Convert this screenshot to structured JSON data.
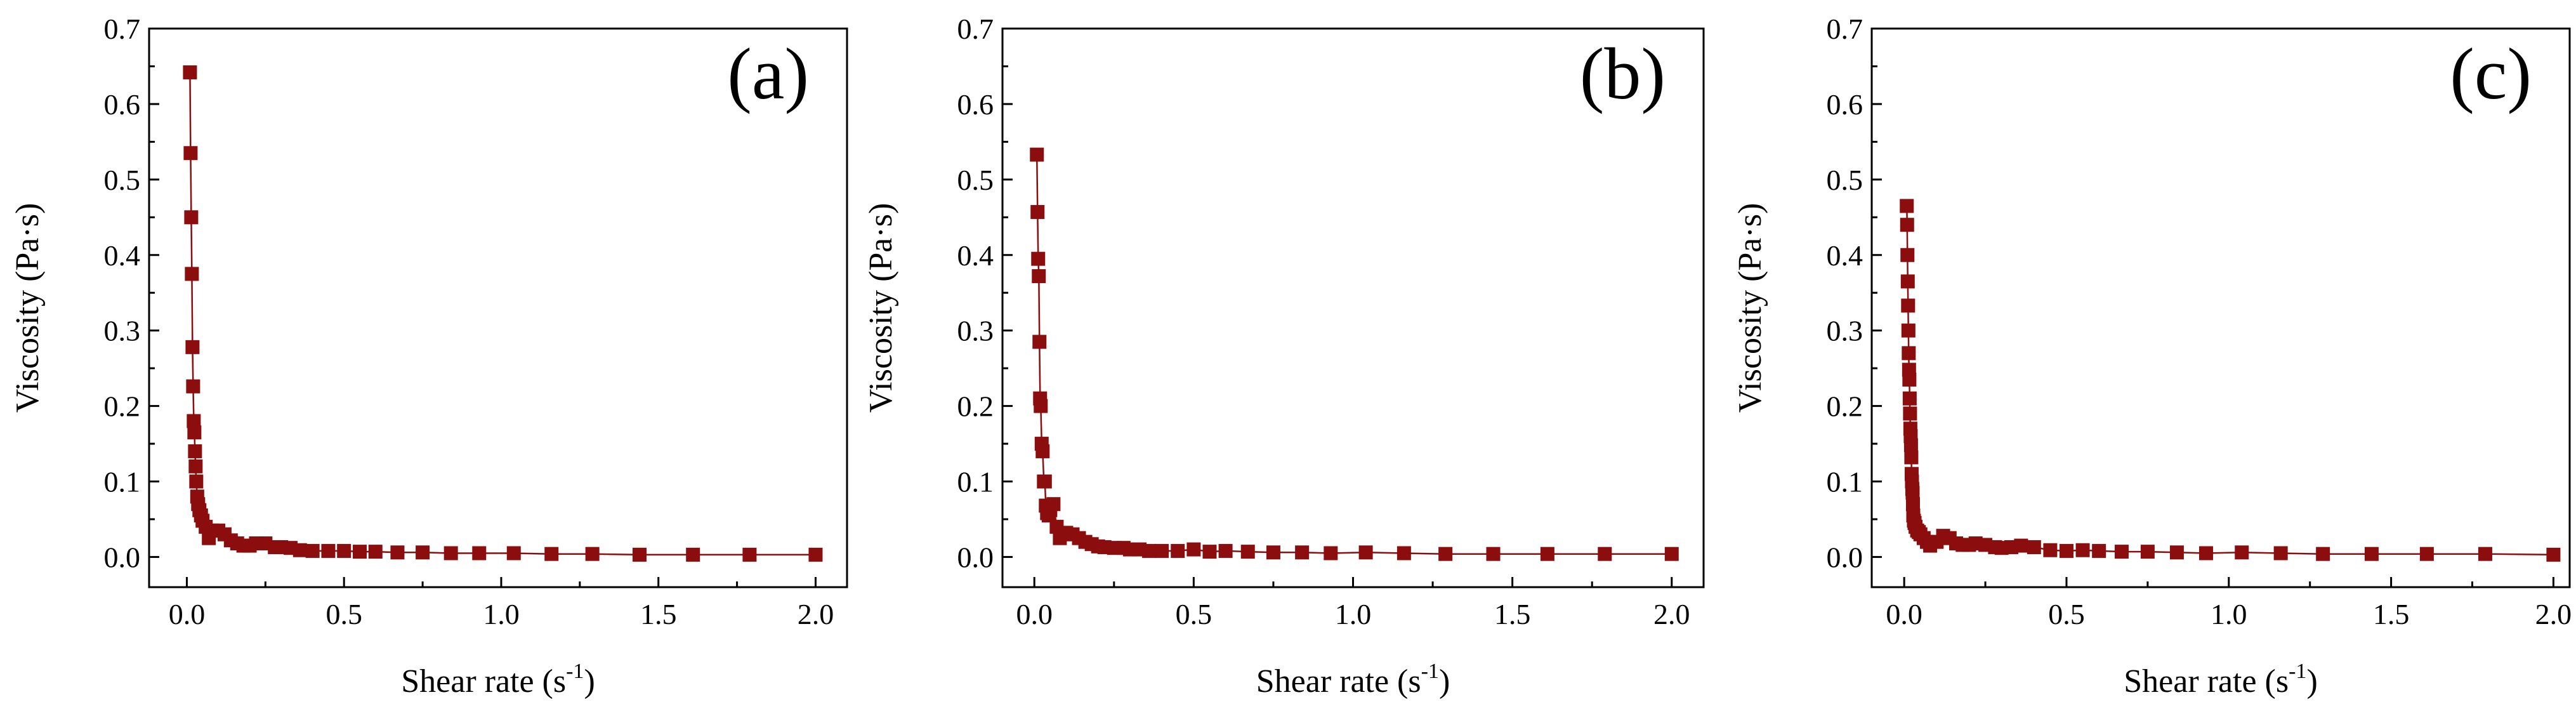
{
  "chart_data": [
    {
      "type": "scatter",
      "panel_label": "(a)",
      "xlabel": "Shear rate (s",
      "xlabel_superscript": "-1",
      "xlabel_suffix": ")",
      "ylabel": "Viscosity (Pa·s)",
      "xlim": [
        -0.12,
        2.1
      ],
      "ylim": [
        -0.04,
        0.7
      ],
      "xticks": [
        0.0,
        0.5,
        1.0,
        1.5,
        2.0
      ],
      "xtick_labels": [
        "0.0",
        "0.5",
        "1.0",
        "1.5",
        "2.0"
      ],
      "yticks": [
        0.0,
        0.1,
        0.2,
        0.3,
        0.4,
        0.5,
        0.6,
        0.7
      ],
      "ytick_labels": [
        "0.0",
        "0.1",
        "0.2",
        "0.3",
        "0.4",
        "0.5",
        "0.6",
        "0.7"
      ],
      "series": [
        {
          "name": "viscosity",
          "color": "#8b0d0d",
          "x": [
            0.01,
            0.012,
            0.014,
            0.016,
            0.018,
            0.02,
            0.022,
            0.024,
            0.026,
            0.028,
            0.03,
            0.033,
            0.036,
            0.04,
            0.045,
            0.05,
            0.06,
            0.07,
            0.08,
            0.1,
            0.12,
            0.14,
            0.16,
            0.18,
            0.2,
            0.22,
            0.25,
            0.28,
            0.3,
            0.33,
            0.36,
            0.4,
            0.45,
            0.5,
            0.55,
            0.6,
            0.67,
            0.75,
            0.84,
            0.93,
            1.04,
            1.16,
            1.29,
            1.44,
            1.61,
            1.79,
            2.0
          ],
          "y": [
            0.642,
            0.535,
            0.45,
            0.375,
            0.278,
            0.226,
            0.18,
            0.165,
            0.14,
            0.12,
            0.1,
            0.08,
            0.07,
            0.062,
            0.055,
            0.048,
            0.04,
            0.025,
            0.035,
            0.035,
            0.03,
            0.022,
            0.018,
            0.015,
            0.015,
            0.018,
            0.018,
            0.013,
            0.013,
            0.012,
            0.009,
            0.008,
            0.008,
            0.008,
            0.007,
            0.007,
            0.006,
            0.006,
            0.005,
            0.005,
            0.005,
            0.004,
            0.004,
            0.003,
            0.003,
            0.003,
            0.003
          ]
        }
      ]
    },
    {
      "type": "scatter",
      "panel_label": "(b)",
      "xlabel": "Shear rate (s",
      "xlabel_superscript": "-1",
      "xlabel_suffix": ")",
      "ylabel": "Viscosity (Pa·s)",
      "xlim": [
        -0.1,
        2.1
      ],
      "ylim": [
        -0.04,
        0.7
      ],
      "xticks": [
        0.0,
        0.5,
        1.0,
        1.5,
        2.0
      ],
      "xtick_labels": [
        "0.0",
        "0.5",
        "1.0",
        "1.5",
        "2.0"
      ],
      "yticks": [
        0.0,
        0.1,
        0.2,
        0.3,
        0.4,
        0.5,
        0.6,
        0.7
      ],
      "ytick_labels": [
        "0.0",
        "0.1",
        "0.2",
        "0.3",
        "0.4",
        "0.5",
        "0.6",
        "0.7"
      ],
      "series": [
        {
          "name": "viscosity",
          "color": "#8b0d0d",
          "x": [
            0.008,
            0.01,
            0.012,
            0.014,
            0.016,
            0.018,
            0.02,
            0.023,
            0.026,
            0.03,
            0.033,
            0.036,
            0.04,
            0.045,
            0.05,
            0.06,
            0.07,
            0.08,
            0.1,
            0.12,
            0.14,
            0.16,
            0.18,
            0.2,
            0.22,
            0.25,
            0.28,
            0.3,
            0.33,
            0.36,
            0.4,
            0.45,
            0.5,
            0.55,
            0.6,
            0.67,
            0.75,
            0.84,
            0.93,
            1.04,
            1.16,
            1.29,
            1.44,
            1.61,
            1.79,
            2.0
          ],
          "y": [
            0.533,
            0.457,
            0.395,
            0.372,
            0.285,
            0.21,
            0.2,
            0.15,
            0.14,
            0.1,
            0.1,
            0.068,
            0.058,
            0.055,
            0.062,
            0.07,
            0.04,
            0.025,
            0.032,
            0.03,
            0.025,
            0.02,
            0.017,
            0.014,
            0.013,
            0.012,
            0.012,
            0.01,
            0.01,
            0.008,
            0.008,
            0.008,
            0.01,
            0.007,
            0.008,
            0.007,
            0.006,
            0.006,
            0.005,
            0.006,
            0.005,
            0.004,
            0.004,
            0.004,
            0.004,
            0.004
          ]
        }
      ]
    },
    {
      "type": "scatter",
      "panel_label": "(c)",
      "xlabel": "Shear rate (s",
      "xlabel_superscript": "-1",
      "xlabel_suffix": ")",
      "ylabel": "Viscosity (Pa·s)",
      "xlim": [
        -0.1,
        2.05
      ],
      "ylim": [
        -0.04,
        0.7
      ],
      "xticks": [
        0.0,
        0.5,
        1.0,
        1.5,
        2.0
      ],
      "xtick_labels": [
        "0.0",
        "0.5",
        "1.0",
        "1.5",
        "2.0"
      ],
      "yticks": [
        0.0,
        0.1,
        0.2,
        0.3,
        0.4,
        0.5,
        0.6,
        0.7
      ],
      "ytick_labels": [
        "0.0",
        "0.1",
        "0.2",
        "0.3",
        "0.4",
        "0.5",
        "0.6",
        "0.7"
      ],
      "series": [
        {
          "name": "viscosity",
          "color": "#8b0d0d",
          "x": [
            0.008,
            0.009,
            0.01,
            0.011,
            0.012,
            0.013,
            0.014,
            0.015,
            0.016,
            0.017,
            0.018,
            0.019,
            0.02,
            0.021,
            0.022,
            0.023,
            0.024,
            0.025,
            0.026,
            0.027,
            0.028,
            0.03,
            0.032,
            0.035,
            0.04,
            0.045,
            0.05,
            0.06,
            0.07,
            0.08,
            0.1,
            0.12,
            0.14,
            0.16,
            0.18,
            0.2,
            0.22,
            0.25,
            0.28,
            0.3,
            0.33,
            0.36,
            0.4,
            0.45,
            0.5,
            0.55,
            0.6,
            0.67,
            0.75,
            0.84,
            0.93,
            1.04,
            1.16,
            1.29,
            1.44,
            1.61,
            1.79,
            2.0
          ],
          "y": [
            0.465,
            0.44,
            0.4,
            0.365,
            0.333,
            0.3,
            0.27,
            0.248,
            0.235,
            0.21,
            0.19,
            0.17,
            0.16,
            0.148,
            0.132,
            0.11,
            0.1,
            0.09,
            0.085,
            0.07,
            0.055,
            0.048,
            0.045,
            0.04,
            0.035,
            0.033,
            0.03,
            0.025,
            0.02,
            0.015,
            0.02,
            0.028,
            0.025,
            0.018,
            0.016,
            0.016,
            0.018,
            0.016,
            0.013,
            0.012,
            0.013,
            0.015,
            0.013,
            0.009,
            0.008,
            0.009,
            0.008,
            0.007,
            0.007,
            0.006,
            0.005,
            0.006,
            0.005,
            0.004,
            0.004,
            0.004,
            0.004,
            0.003
          ]
        }
      ]
    }
  ]
}
